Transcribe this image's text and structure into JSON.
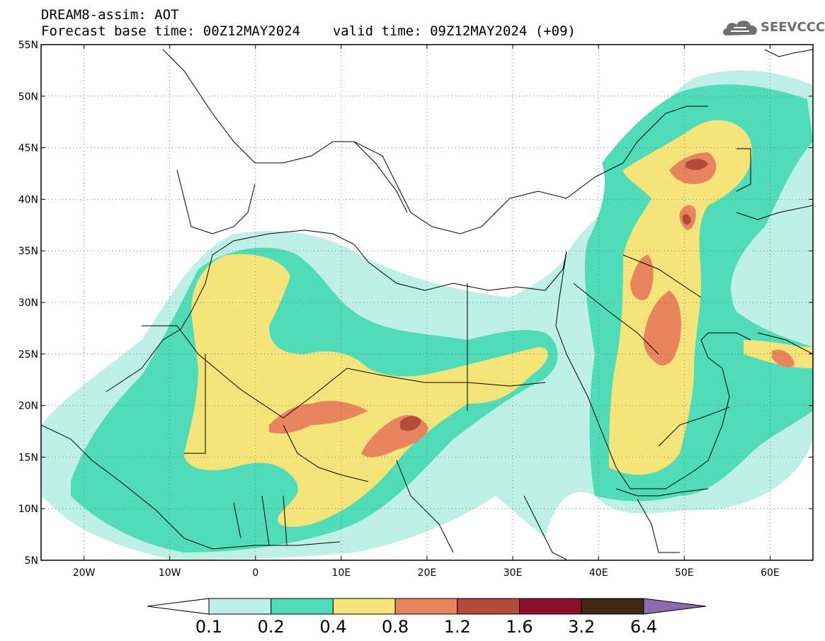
{
  "header": {
    "line1": "DREAM8-assim: AOT",
    "base_time_label": "Forecast base time: 00Z12MAY2024",
    "valid_time_label": "valid time: 09Z12MAY2024 (+09)"
  },
  "logo": {
    "text": "SEEVCCC",
    "icon": "cloud-icon"
  },
  "map": {
    "lat_range": [
      5,
      55
    ],
    "lon_range": [
      -25,
      65
    ],
    "lat_ticks": [
      "55N",
      "50N",
      "45N",
      "40N",
      "35N",
      "30N",
      "25N",
      "20N",
      "15N",
      "10N",
      "5N"
    ],
    "lon_ticks": [
      "20W",
      "10W",
      "0",
      "10E",
      "20E",
      "30E",
      "40E",
      "50E",
      "60E"
    ],
    "grid": "dotted"
  },
  "colorbar": {
    "labels": [
      "0.1",
      "0.2",
      "0.4",
      "0.8",
      "1.2",
      "1.6",
      "3.2",
      "6.4"
    ],
    "colors": [
      "#ffffff",
      "#bff0e6",
      "#4fdcb6",
      "#f5e47a",
      "#e8855e",
      "#b34a3a",
      "#8a0e28",
      "#3f2814",
      "#8c6ab0"
    ]
  }
}
